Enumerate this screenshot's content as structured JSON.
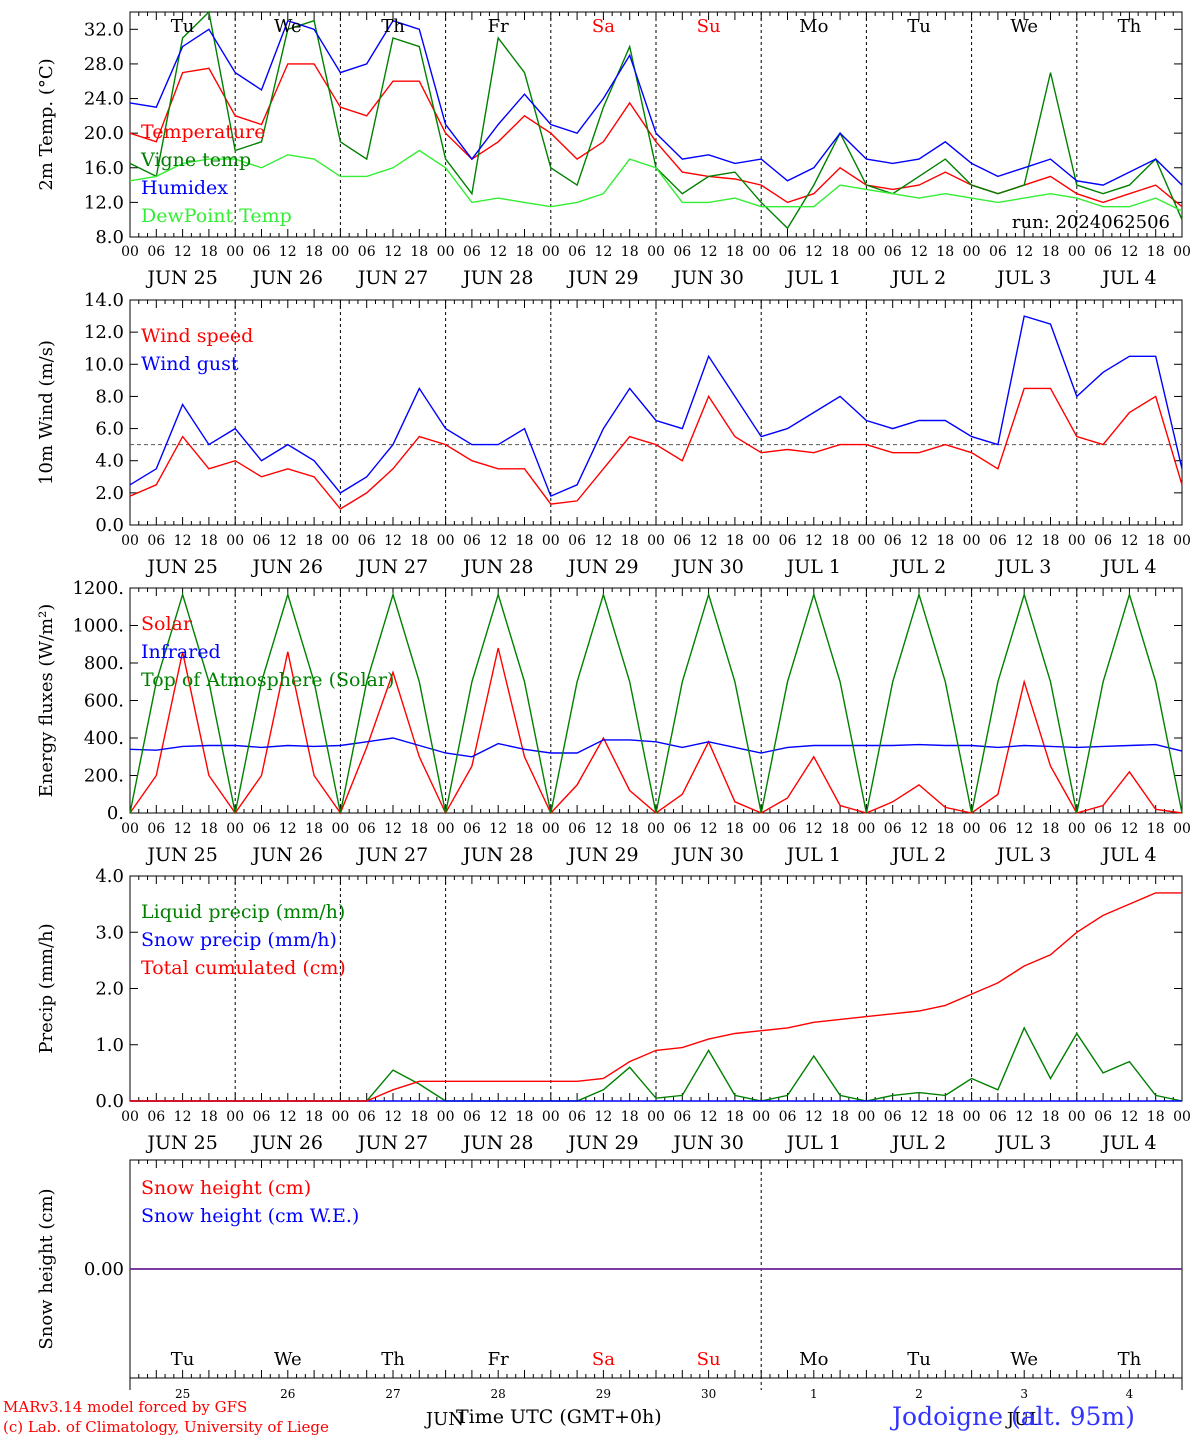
{
  "chart_data": [
    {
      "type": "line",
      "id": "temperature",
      "ylabel": "2m Temp. (°C)",
      "ylim": [
        8,
        34
      ],
      "yticks": [
        "8.0",
        "12.0",
        "16.0",
        "20.0",
        "24.0",
        "28.0",
        "32.0"
      ],
      "ytick_values": [
        8,
        12,
        16,
        20,
        24,
        28,
        32
      ],
      "annotation": "run: 2024062506",
      "x_hours": [
        0,
        6,
        12,
        18,
        24,
        30,
        36,
        42,
        48,
        54,
        60,
        66,
        72,
        78,
        84,
        90,
        96,
        102,
        108,
        114,
        120,
        126,
        132,
        138,
        144,
        150,
        156,
        162,
        168,
        174,
        180,
        186,
        192,
        198,
        204,
        210,
        216,
        222,
        228,
        234,
        240
      ],
      "series": [
        {
          "name": "Temperature",
          "color": "#ff0000",
          "values": [
            20,
            19,
            27,
            27.5,
            22,
            21,
            28,
            28,
            23,
            22,
            26,
            26,
            20,
            17,
            19,
            22,
            20,
            17,
            19,
            23.5,
            19,
            15.5,
            15,
            14.7,
            14,
            12,
            13,
            16,
            14,
            13.5,
            14,
            15.5,
            14,
            13,
            14,
            15,
            13,
            12,
            13,
            14,
            11.5
          ]
        },
        {
          "name": "Vigne temp",
          "color": "#008000",
          "values": [
            16.5,
            15,
            31,
            34,
            18,
            19,
            32,
            33,
            19,
            17,
            31,
            30,
            17,
            13,
            31,
            27,
            16,
            14,
            23,
            30,
            16,
            13,
            15,
            15.5,
            12,
            9,
            14,
            20,
            14,
            13,
            15,
            17,
            14,
            13,
            14,
            27,
            14,
            13,
            14,
            17,
            10
          ]
        },
        {
          "name": "Humidex",
          "color": "#0000ff",
          "values": [
            23.5,
            23,
            30,
            32,
            27,
            25,
            33,
            32,
            27,
            28,
            33,
            32,
            21,
            17,
            21,
            24.5,
            21,
            20,
            24,
            29,
            20,
            17,
            17.5,
            16.5,
            17,
            14.5,
            16,
            20,
            17,
            16.5,
            17,
            19,
            16.5,
            15,
            16,
            17,
            14.5,
            14,
            15.5,
            17,
            14
          ]
        },
        {
          "name": "DewPoint Temp",
          "color": "#33ee33",
          "values": [
            14.5,
            15,
            16.5,
            17,
            17,
            16,
            17.5,
            17,
            15,
            15,
            16,
            18,
            16,
            12,
            12.5,
            12,
            11.5,
            12,
            13,
            17,
            16,
            12,
            12,
            12.5,
            11.5,
            11.5,
            11.5,
            14,
            13.5,
            13,
            12.5,
            13,
            12.5,
            12,
            12.5,
            13,
            12.5,
            11.5,
            11.5,
            12.5,
            11
          ]
        }
      ]
    },
    {
      "type": "line",
      "id": "wind",
      "ylabel": "10m Wind (m/s)",
      "ylim": [
        0,
        14
      ],
      "yticks": [
        "0.0",
        "2.0",
        "4.0",
        "6.0",
        "8.0",
        "10.0",
        "12.0",
        "14.0"
      ],
      "ytick_values": [
        0,
        2,
        4,
        6,
        8,
        10,
        12,
        14
      ],
      "reference_line": 5,
      "x_hours": [
        0,
        6,
        12,
        18,
        24,
        30,
        36,
        42,
        48,
        54,
        60,
        66,
        72,
        78,
        84,
        90,
        96,
        102,
        108,
        114,
        120,
        126,
        132,
        138,
        144,
        150,
        156,
        162,
        168,
        174,
        180,
        186,
        192,
        198,
        204,
        210,
        216,
        222,
        228,
        234,
        240
      ],
      "series": [
        {
          "name": "Wind speed",
          "color": "#ff0000",
          "values": [
            1.8,
            2.5,
            5.5,
            3.5,
            4,
            3,
            3.5,
            3,
            1,
            2,
            3.5,
            5.5,
            5,
            4,
            3.5,
            3.5,
            1.3,
            1.5,
            3.5,
            5.5,
            5,
            4,
            8,
            5.5,
            4.5,
            4.7,
            4.5,
            5,
            5,
            4.5,
            4.5,
            5,
            4.5,
            3.5,
            8.5,
            8.5,
            5.5,
            5,
            7,
            8,
            2.5
          ]
        },
        {
          "name": "Wind gust",
          "color": "#0000ff",
          "values": [
            2.5,
            3.5,
            7.5,
            5,
            6,
            4,
            5,
            4,
            2,
            3,
            5,
            8.5,
            6,
            5,
            5,
            6,
            1.8,
            2.5,
            6,
            8.5,
            6.5,
            6,
            10.5,
            8,
            5.5,
            6,
            7,
            8,
            6.5,
            6,
            6.5,
            6.5,
            5.5,
            5,
            13,
            12.5,
            8,
            9.5,
            10.5,
            10.5,
            3.5
          ]
        }
      ]
    },
    {
      "type": "line",
      "id": "energy",
      "ylabel": "Energy fluxes (W/m²)",
      "ylim": [
        0,
        1200
      ],
      "yticks": [
        "0.",
        "200.",
        "400.",
        "600.",
        "800.",
        "1000.",
        "1200."
      ],
      "ytick_values": [
        0,
        200,
        400,
        600,
        800,
        1000,
        1200
      ],
      "x_hours": [
        0,
        6,
        12,
        18,
        24,
        30,
        36,
        42,
        48,
        54,
        60,
        66,
        72,
        78,
        84,
        90,
        96,
        102,
        108,
        114,
        120,
        126,
        132,
        138,
        144,
        150,
        156,
        162,
        168,
        174,
        180,
        186,
        192,
        198,
        204,
        210,
        216,
        222,
        228,
        234,
        240
      ],
      "series": [
        {
          "name": "Solar",
          "color": "#ff0000",
          "values": [
            0,
            200,
            860,
            200,
            0,
            200,
            860,
            200,
            0,
            350,
            750,
            300,
            0,
            250,
            880,
            300,
            0,
            150,
            400,
            120,
            0,
            100,
            380,
            60,
            0,
            80,
            300,
            40,
            0,
            60,
            150,
            30,
            0,
            100,
            700,
            250,
            0,
            40,
            220,
            20,
            0
          ]
        },
        {
          "name": "Infrared",
          "color": "#0000ff",
          "values": [
            340,
            335,
            355,
            360,
            360,
            350,
            360,
            355,
            360,
            380,
            400,
            360,
            320,
            300,
            370,
            340,
            320,
            320,
            390,
            390,
            380,
            350,
            380,
            350,
            320,
            350,
            360,
            360,
            360,
            360,
            365,
            360,
            360,
            350,
            360,
            355,
            350,
            355,
            360,
            365,
            330
          ]
        },
        {
          "name": "Top of Atmosphere (Solar)",
          "color": "#008000",
          "values": [
            0,
            700,
            1165,
            700,
            0,
            700,
            1165,
            700,
            0,
            700,
            1165,
            700,
            0,
            700,
            1165,
            700,
            0,
            700,
            1165,
            700,
            0,
            700,
            1165,
            700,
            0,
            700,
            1165,
            700,
            0,
            700,
            1165,
            700,
            0,
            700,
            1165,
            700,
            0,
            700,
            1165,
            700,
            0
          ]
        }
      ]
    },
    {
      "type": "line",
      "id": "precip",
      "ylabel": "Precip (mm/h)",
      "ylim": [
        0,
        4
      ],
      "yticks": [
        "0.0",
        "1.0",
        "2.0",
        "3.0",
        "4.0"
      ],
      "ytick_values": [
        0,
        1,
        2,
        3,
        4
      ],
      "x_hours": [
        0,
        6,
        12,
        18,
        24,
        30,
        36,
        42,
        48,
        54,
        60,
        66,
        72,
        78,
        84,
        90,
        96,
        102,
        108,
        114,
        120,
        126,
        132,
        138,
        144,
        150,
        156,
        162,
        168,
        174,
        180,
        186,
        192,
        198,
        204,
        210,
        216,
        222,
        228,
        234,
        240
      ],
      "series": [
        {
          "name": "Liquid precip (mm/h)",
          "color": "#008000",
          "values": [
            0,
            0,
            0,
            0,
            0,
            0,
            0,
            0,
            0,
            0,
            0.55,
            0.3,
            0,
            0,
            0,
            0,
            0,
            0,
            0.2,
            0.6,
            0.05,
            0.1,
            0.9,
            0.1,
            0,
            0.1,
            0.8,
            0.1,
            0,
            0.1,
            0.15,
            0.1,
            0.4,
            0.2,
            1.3,
            0.4,
            1.2,
            0.5,
            0.7,
            0.1,
            0
          ]
        },
        {
          "name": "Snow precip (mm/h)",
          "color": "#0000ff",
          "values": [
            0,
            0,
            0,
            0,
            0,
            0,
            0,
            0,
            0,
            0,
            0,
            0,
            0,
            0,
            0,
            0,
            0,
            0,
            0,
            0,
            0,
            0,
            0,
            0,
            0,
            0,
            0,
            0,
            0,
            0,
            0,
            0,
            0,
            0,
            0,
            0,
            0,
            0,
            0,
            0,
            0
          ]
        },
        {
          "name": "Total cumulated (cm)",
          "color": "#ff0000",
          "values": [
            0,
            0,
            0,
            0,
            0,
            0,
            0,
            0,
            0,
            0,
            0.2,
            0.35,
            0.35,
            0.35,
            0.35,
            0.35,
            0.35,
            0.35,
            0.4,
            0.7,
            0.9,
            0.95,
            1.1,
            1.2,
            1.25,
            1.3,
            1.4,
            1.45,
            1.5,
            1.55,
            1.6,
            1.7,
            1.9,
            2.1,
            2.4,
            2.6,
            3.0,
            3.3,
            3.5,
            3.7,
            3.7
          ]
        }
      ]
    },
    {
      "type": "line",
      "id": "snow",
      "ylabel": "Snow height (cm)",
      "ylim": [
        -1,
        1
      ],
      "yticks": [
        "0.00"
      ],
      "ytick_values": [
        0
      ],
      "x_hours": [
        0,
        240
      ],
      "series": [
        {
          "name": "Snow height (cm)",
          "color": "#ff0000",
          "values": [
            0,
            0
          ]
        },
        {
          "name": "Snow height (cm W.E.)",
          "color": "#0000ff",
          "values": [
            0,
            0
          ]
        }
      ]
    }
  ],
  "x_axis": {
    "hour_labels": [
      "00",
      "06",
      "12",
      "18"
    ],
    "date_labels": [
      "JUN 25",
      "JUN 26",
      "JUN 27",
      "JUN 28",
      "JUN 29",
      "JUN 30",
      "JUL  1",
      "JUL  2",
      "JUL  3",
      "JUL  4"
    ],
    "weekday_labels": [
      "Tu",
      "We",
      "Th",
      "Fr",
      "Sa",
      "Su",
      "Mo",
      "Tu",
      "We",
      "Th"
    ],
    "weekend_color": "#ff0000",
    "day_numbers": [
      "25",
      "26",
      "27",
      "28",
      "29",
      "30",
      "1",
      "2",
      "3",
      "4"
    ],
    "month_labels": [
      "JUN",
      "JUL"
    ],
    "xlabel": "Time UTC (GMT+0h)"
  },
  "footer": {
    "credit_1": "MARv3.14 model forced by GFS",
    "credit_2": "(c) Lab. of Climatology, University of Liege",
    "location": "Jodoigne (alt. 95m)"
  }
}
